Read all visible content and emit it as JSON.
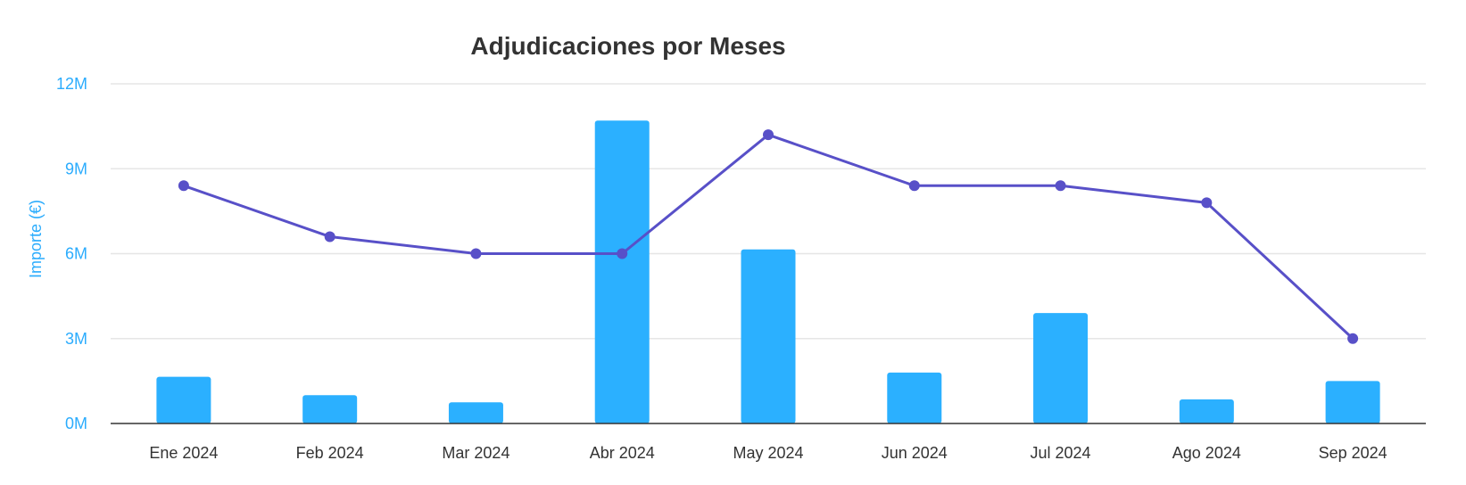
{
  "chart_data": {
    "type": "bar",
    "title": "Adjudicaciones por Meses",
    "xlabel": "",
    "ylabel": "Importe (€)",
    "categories": [
      "Ene 2024",
      "Feb 2024",
      "Mar 2024",
      "Abr 2024",
      "May 2024",
      "Jun 2024",
      "Jul 2024",
      "Ago 2024",
      "Sep 2024"
    ],
    "y_ticks": [
      "0M",
      "3M",
      "6M",
      "9M",
      "12M"
    ],
    "ylim": [
      0,
      12
    ],
    "grid": true,
    "legend": "none",
    "series": [
      {
        "type": "bar",
        "color": "#2bb0ff",
        "values": [
          1.65,
          1.0,
          0.75,
          10.7,
          6.15,
          1.8,
          3.9,
          0.85,
          1.5
        ]
      },
      {
        "type": "line",
        "color": "#5850c8",
        "axis": "secondary",
        "values": [
          28,
          22,
          20,
          20,
          34,
          28,
          28,
          26,
          10
        ]
      }
    ]
  }
}
